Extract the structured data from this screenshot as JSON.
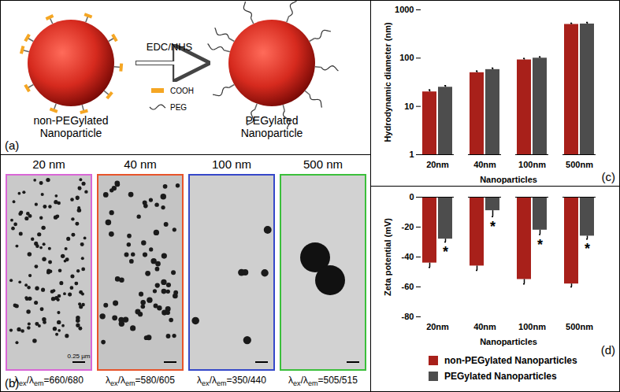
{
  "figure": {
    "panel_a": {
      "label": "(a)",
      "left_label": [
        "non-PEGylated",
        "Nanoparticle"
      ],
      "right_label": [
        "PEGylated",
        "Nanoparticle"
      ],
      "reagent": "EDC/NHS",
      "key_cooh": "COOH",
      "key_peg": "PEG"
    },
    "panel_b": {
      "label": "(b)",
      "images": [
        {
          "title": "20 nm",
          "scale_bar": "0.25 µm",
          "caption": [
            {
              "text": "λ"
            },
            {
              "text": "ex",
              "sub": true
            },
            {
              "text": "/λ"
            },
            {
              "text": "em",
              "sub": true
            },
            {
              "text": "=660/680"
            }
          ]
        },
        {
          "title": "40 nm",
          "caption": [
            {
              "text": "λ"
            },
            {
              "text": "ex",
              "sub": true
            },
            {
              "text": "/λ"
            },
            {
              "text": "em",
              "sub": true
            },
            {
              "text": "=580/605"
            }
          ]
        },
        {
          "title": "100 nm",
          "caption": [
            {
              "text": "λ"
            },
            {
              "text": "ex",
              "sub": true
            },
            {
              "text": "/λ"
            },
            {
              "text": "em",
              "sub": true
            },
            {
              "text": "=350/440"
            }
          ]
        },
        {
          "title": "500 nm",
          "caption": [
            {
              "text": "λ"
            },
            {
              "text": "ex",
              "sub": true
            },
            {
              "text": "/λ"
            },
            {
              "text": "em",
              "sub": true
            },
            {
              "text": "=505/515"
            }
          ]
        }
      ]
    },
    "panel_c": {
      "label": "(c)"
    },
    "panel_d": {
      "label": "(d)"
    }
  },
  "chart_data": [
    {
      "type": "bar",
      "log": "y",
      "categories": [
        "20nm",
        "40nm",
        "100nm",
        "500nm"
      ],
      "xlabel": "Nanoparticles",
      "ylabel": "Hydrodynamic diameter (nm)",
      "ylim": [
        1,
        1000
      ],
      "yticks": [
        1,
        10,
        100,
        1000
      ],
      "series": [
        {
          "name": "non-PEGylated Nanoparticles",
          "color": "#a8201a",
          "values": [
            20,
            50,
            92,
            500
          ],
          "errors": [
            2,
            4,
            6,
            30
          ]
        },
        {
          "name": "PEGylated Nanoparticles",
          "color": "#4d4d4d",
          "values": [
            25,
            58,
            100,
            510
          ],
          "errors": [
            2,
            4,
            6,
            40
          ]
        }
      ]
    },
    {
      "type": "bar",
      "categories": [
        "20nm",
        "40nm",
        "100nm",
        "500nm"
      ],
      "xlabel": "Nanoparticles",
      "ylabel": "Zeta potential (mV)",
      "ylim": [
        -80,
        0
      ],
      "yticks": [
        -80,
        -60,
        -40,
        -20,
        0
      ],
      "legend": "bottom",
      "series": [
        {
          "name": "non-PEGylated Nanoparticles",
          "color": "#a8201a",
          "values": [
            -44,
            -46,
            -55,
            -58
          ],
          "errors": [
            3,
            3,
            3,
            2
          ]
        },
        {
          "name": "PEGylated Nanoparticles",
          "color": "#4d4d4d",
          "values": [
            -28,
            -9,
            -22,
            -26
          ],
          "errors": [
            2,
            4,
            3,
            2
          ]
        }
      ],
      "annotations": [
        {
          "category": "20nm",
          "series": "PEGylated Nanoparticles",
          "text": "*"
        },
        {
          "category": "40nm",
          "series": "PEGylated Nanoparticles",
          "text": "*"
        },
        {
          "category": "100nm",
          "series": "PEGylated Nanoparticles",
          "text": "*"
        },
        {
          "category": "500nm",
          "series": "PEGylated Nanoparticles",
          "text": "*"
        }
      ]
    }
  ]
}
